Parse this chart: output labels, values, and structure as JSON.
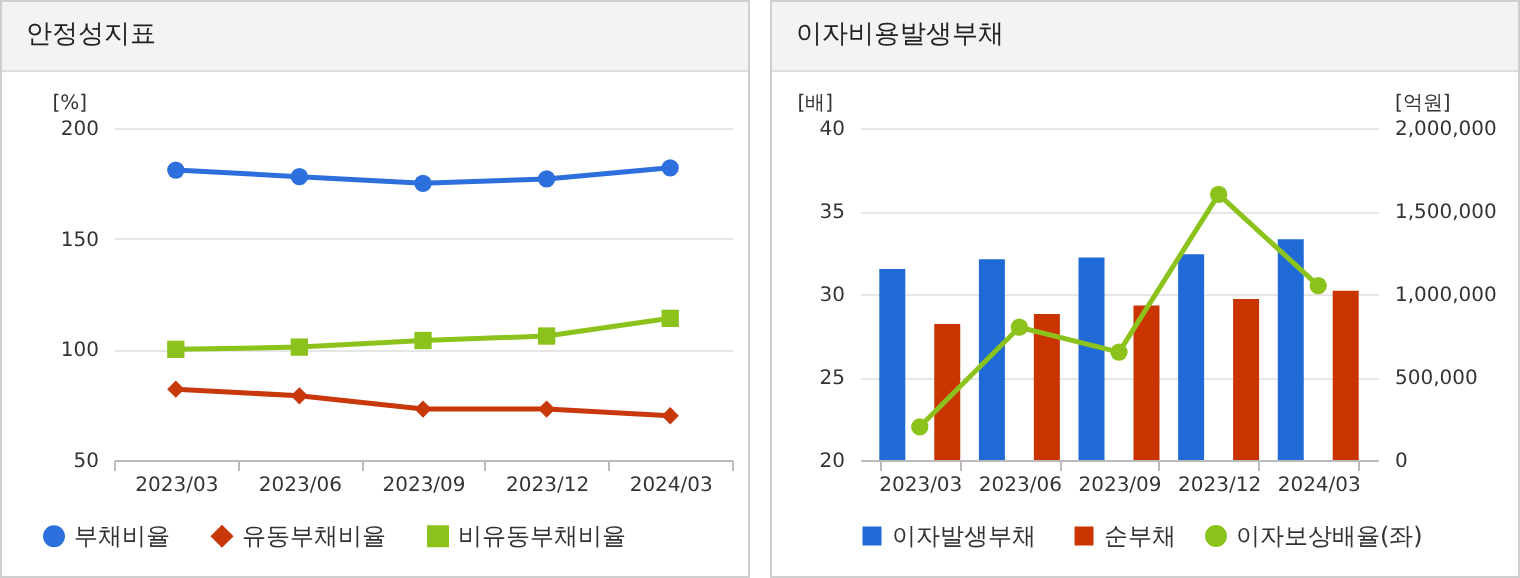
{
  "chart_data": [
    {
      "type": "line",
      "title": "안정성지표",
      "ylabel": "[%]",
      "categories": [
        "2023/03",
        "2023/06",
        "2023/09",
        "2023/12",
        "2024/03"
      ],
      "ylim": [
        50,
        200
      ],
      "yticks": [
        50,
        100,
        150,
        200
      ],
      "grid": "y",
      "legend": "bottom",
      "series": [
        {
          "name": "부채비율",
          "color": "#2d6fdc",
          "marker": "circle",
          "values": [
            181,
            178,
            175,
            177,
            182
          ]
        },
        {
          "name": "유동부채비율",
          "color": "#c8380a",
          "marker": "diamond",
          "values": [
            82,
            79,
            73,
            73,
            70
          ]
        },
        {
          "name": "비유동부채비율",
          "color": "#8cc21c",
          "marker": "square",
          "values": [
            100,
            101,
            104,
            106,
            114
          ]
        }
      ]
    },
    {
      "type": "bar",
      "title": "이자비용발생부채",
      "ylabel": "[배]",
      "y2label": "[억원]",
      "categories": [
        "2023/03",
        "2023/06",
        "2023/09",
        "2023/12",
        "2024/03"
      ],
      "ylim": [
        20,
        40
      ],
      "yticks": [
        20,
        25,
        30,
        35,
        40
      ],
      "y2lim": [
        0,
        2000000
      ],
      "y2ticks": [
        0,
        {
          "value": 500000,
          "label": "500,000"
        },
        {
          "value": 1000000,
          "label": "1,000,000"
        },
        {
          "value": 1500000,
          "label": "1,500,000"
        },
        {
          "value": 2000000,
          "label": "2,000,000"
        }
      ],
      "grid": "y",
      "legend": "bottom",
      "series": [
        {
          "name": "이자발생부채",
          "color": "#1f6ad6",
          "axis": "y2",
          "values": [
            1150000,
            1210000,
            1220000,
            1240000,
            1330000
          ]
        },
        {
          "name": "순부채",
          "color": "#c93400",
          "axis": "y2",
          "values": [
            820000,
            880000,
            930000,
            970000,
            1020000
          ]
        },
        {
          "name": "이자보상배율(좌)",
          "type": "line",
          "color": "#8cc21c",
          "marker": "circle",
          "values": [
            22,
            28,
            26.5,
            36,
            30.5
          ]
        }
      ]
    }
  ]
}
